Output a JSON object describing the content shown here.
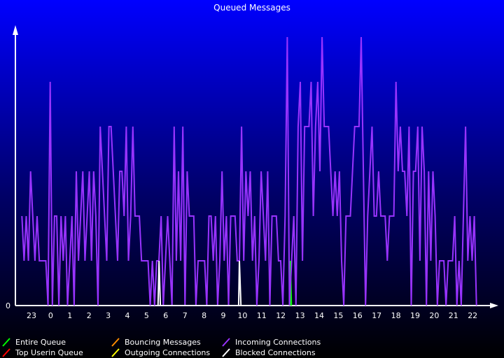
{
  "chart_data": {
    "type": "line",
    "title": "Queued Messages",
    "y_ticks": [
      "0"
    ],
    "x_ticks": [
      "23",
      "0",
      "1",
      "2",
      "3",
      "4",
      "5",
      "6",
      "7",
      "8",
      "9",
      "10",
      "11",
      "12",
      "13",
      "14",
      "15",
      "16",
      "17",
      "18",
      "19",
      "20",
      "21",
      "22"
    ],
    "series": [
      {
        "name": "Entire Queue",
        "color": "#00ff00",
        "points": [
          [
            12.5,
            0
          ],
          [
            12.5,
            1
          ],
          [
            12.55,
            0
          ]
        ]
      },
      {
        "name": "Top Userin Queue",
        "color": "#ff0000",
        "points": []
      },
      {
        "name": "Bouncing Messages",
        "color": "#ff8c00",
        "points": []
      },
      {
        "name": "Outgoing Connections",
        "color": "#ffff00",
        "points": []
      },
      {
        "name": "Incoming Connections",
        "color": "#9933ff",
        "values": [
          2,
          1,
          2,
          1,
          3,
          2,
          1,
          2,
          1,
          1,
          1,
          1,
          0,
          5,
          0,
          2,
          2,
          0,
          2,
          1,
          2,
          0,
          1,
          2,
          0,
          3,
          1,
          2,
          3,
          1,
          2,
          3,
          1,
          3,
          2,
          0,
          4,
          3,
          2,
          1,
          4,
          4,
          3,
          2,
          1,
          3,
          3,
          2,
          4,
          1,
          2,
          4,
          2,
          2,
          2,
          1,
          1,
          1,
          1,
          0,
          1,
          0,
          1,
          1,
          2,
          0,
          1,
          2,
          1,
          0,
          4,
          1,
          3,
          1,
          4,
          0,
          3,
          2,
          2,
          2,
          0,
          1,
          1,
          1,
          1,
          0,
          2,
          2,
          1,
          2,
          0,
          1,
          3,
          1,
          2,
          0,
          2,
          2,
          2,
          1,
          1,
          4,
          1,
          3,
          2,
          3,
          1,
          2,
          0,
          1,
          3,
          2,
          1,
          3,
          0,
          2,
          2,
          2,
          1,
          1,
          0,
          2,
          6,
          0,
          1,
          2,
          0,
          4,
          5,
          1,
          4,
          4,
          4,
          5,
          2,
          4,
          5,
          3,
          6,
          4,
          4,
          4,
          3,
          2,
          3,
          2,
          3,
          1,
          0,
          2,
          2,
          2,
          3,
          4,
          4,
          4,
          6,
          3,
          0,
          2,
          3,
          4,
          2,
          2,
          3,
          2,
          2,
          2,
          1,
          2,
          2,
          2,
          5,
          3,
          4,
          3,
          3,
          2,
          4,
          0,
          3,
          3,
          4,
          1,
          4,
          3,
          0,
          3,
          1,
          3,
          2,
          0,
          1,
          1,
          1,
          0,
          1,
          1,
          1,
          2,
          0,
          1,
          0,
          2,
          4,
          1,
          2,
          1,
          2,
          0
        ]
      },
      {
        "name": "Blocked Connections",
        "color": "#ffffff",
        "points": [
          [
            5.6,
            0
          ],
          [
            5.65,
            1
          ],
          [
            5.72,
            0
          ],
          [
            9.8,
            0
          ],
          [
            9.84,
            1
          ],
          [
            9.92,
            0
          ]
        ]
      }
    ]
  },
  "legend": [
    {
      "label": "Entire Queue",
      "color": "#00ff00"
    },
    {
      "label": "Top Userin Queue",
      "color": "#ff0000"
    },
    {
      "label": "Bouncing Messages",
      "color": "#ff8c00"
    },
    {
      "label": "Outgoing Connections",
      "color": "#ffff00"
    },
    {
      "label": "Incoming Connections",
      "color": "#9933ff"
    },
    {
      "label": "Blocked Connections",
      "color": "#ffffff"
    }
  ]
}
